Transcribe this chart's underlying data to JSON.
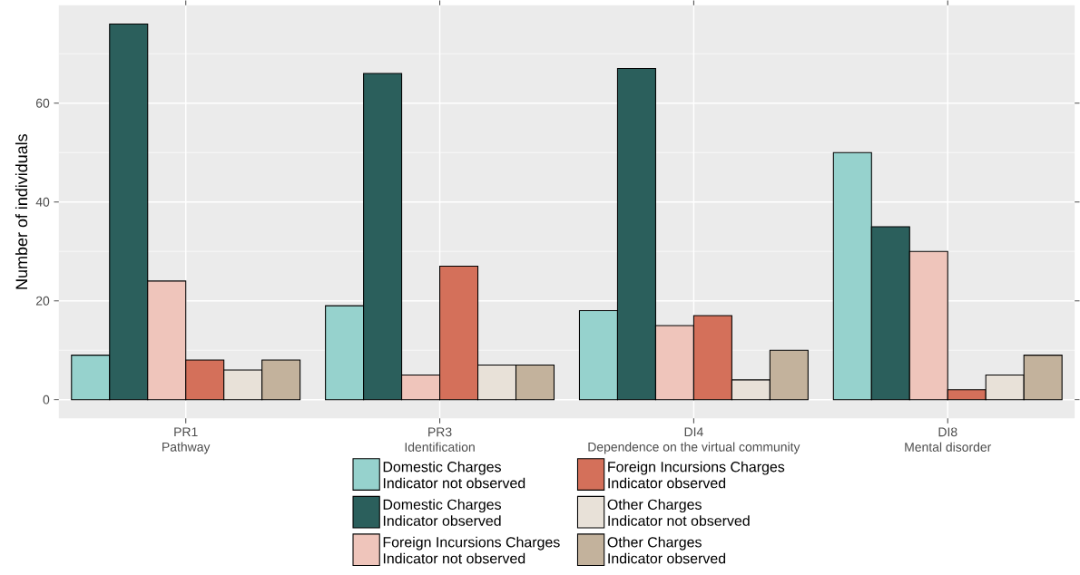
{
  "chart_data": {
    "type": "bar",
    "ylabel": "Number of individuals",
    "categories": [
      "PR1\nPathway",
      "PR3\nIdentification",
      "DI4\nDependence on the virtual community",
      "DI8\nMental disorder"
    ],
    "series": [
      {
        "name": "Domestic Charges\nIndicator not observed",
        "color": "#96d2cd",
        "values": [
          9,
          19,
          18,
          50
        ]
      },
      {
        "name": "Domestic Charges\nIndicator observed",
        "color": "#2b5f5c",
        "values": [
          76,
          66,
          67,
          35
        ]
      },
      {
        "name": "Foreign Incursions Charges\nIndicator not observed",
        "color": "#efc5bb",
        "values": [
          24,
          5,
          15,
          30
        ]
      },
      {
        "name": "Foreign Incursions Charges\nIndicator observed",
        "color": "#d4705a",
        "values": [
          8,
          27,
          17,
          2
        ]
      },
      {
        "name": "Other Charges\nIndicator not observed",
        "color": "#e8e1d8",
        "values": [
          6,
          7,
          4,
          5
        ]
      },
      {
        "name": "Other Charges\nIndicator observed",
        "color": "#c3b29c",
        "values": [
          8,
          7,
          10,
          9
        ]
      }
    ],
    "ylim": [
      -3.8,
      79.8
    ],
    "yticks": [
      0,
      20,
      40,
      60
    ],
    "grid": true,
    "legend": "bottom"
  }
}
